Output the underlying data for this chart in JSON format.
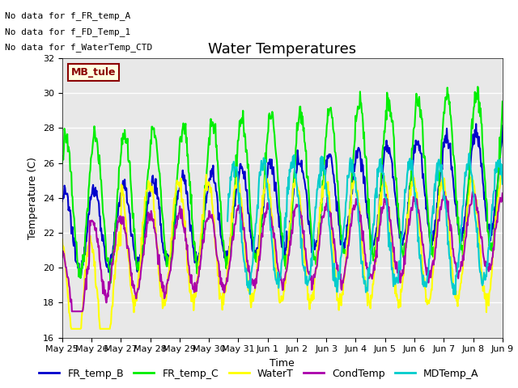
{
  "title": "Water Temperatures",
  "xlabel": "Time",
  "ylabel": "Temperature (C)",
  "ylim": [
    16,
    32
  ],
  "plot_bg_color": "#e8e8e8",
  "grid_color": "white",
  "annotations": [
    "No data for f_FR_temp_A",
    "No data for f_FD_Temp_1",
    "No data for f_WaterTemp_CTD"
  ],
  "mb_tule_label": "MB_tule",
  "series": {
    "FR_temp_B": {
      "color": "#0000cc",
      "lw": 1.5
    },
    "FR_temp_C": {
      "color": "#00ee00",
      "lw": 1.5
    },
    "WaterT": {
      "color": "#ffff00",
      "lw": 1.5
    },
    "CondTemp": {
      "color": "#aa00aa",
      "lw": 1.5
    },
    "MDTemp_A": {
      "color": "#00cccc",
      "lw": 1.5
    }
  },
  "xtick_labels": [
    "May 25",
    "May 26",
    "May 27",
    "May 28",
    "May 29",
    "May 30",
    "May 31",
    "Jun 1",
    "Jun 2",
    "Jun 3",
    "Jun 4",
    "Jun 5",
    "Jun 6",
    "Jun 7",
    "Jun 8",
    "Jun 9"
  ],
  "title_fontsize": 13,
  "axis_fontsize": 9,
  "tick_fontsize": 8,
  "legend_fontsize": 9,
  "annot_fontsize": 8
}
